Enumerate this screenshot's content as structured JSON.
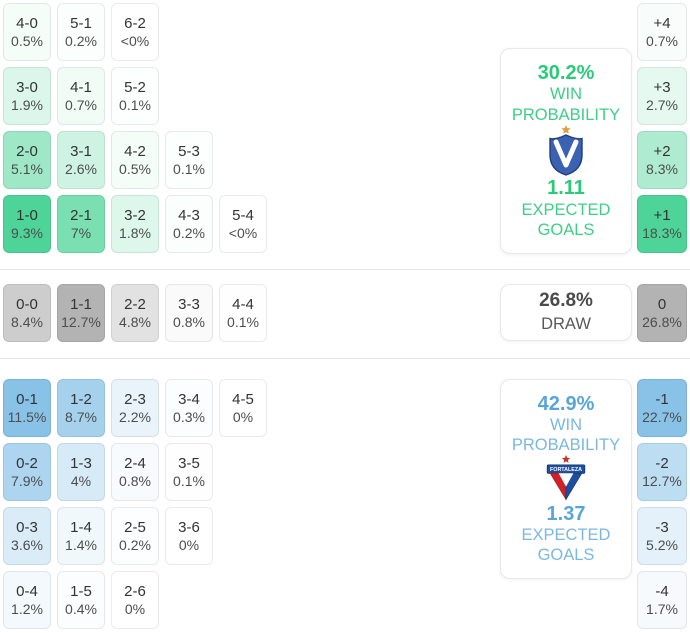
{
  "home_summary": {
    "team": "Velez Sarsfield",
    "win_probability": "30.2%",
    "win_label_line1": "WIN",
    "win_label_line2": "PROBABILITY",
    "expected_goals": "1.11",
    "goals_label_line1": "EXPECTED",
    "goals_label_line2": "GOALS"
  },
  "draw_summary": {
    "probability": "26.8%",
    "label": "DRAW"
  },
  "away_summary": {
    "team": "Fortaleza",
    "team_banner_text": "FORTALEZA",
    "win_probability": "42.9%",
    "win_label_line1": "WIN",
    "win_label_line2": "PROBABILITY",
    "expected_goals": "1.37",
    "goals_label_line1": "EXPECTED",
    "goals_label_line2": "GOALS"
  },
  "theme": {
    "home_color": "#4ed498",
    "draw_color": "#b3b3b3",
    "away_color": "#88c2e7",
    "home_text": "#2bc97a",
    "away_text": "#5aa5d7"
  },
  "chart_data": {
    "type": "heatmap",
    "description": "Correct-score probability matrix with goal-margin distribution; cell shading is proportional to probability within each section",
    "sections": [
      {
        "name": "home-win",
        "color_base": "#4ed498",
        "rows": [
          [
            {
              "score": "4-0",
              "pct": "0.5%",
              "value": 0.5
            },
            {
              "score": "5-1",
              "pct": "0.2%",
              "value": 0.2
            },
            {
              "score": "6-2",
              "pct": "<0%",
              "value": 0
            }
          ],
          [
            {
              "score": "3-0",
              "pct": "1.9%",
              "value": 1.9
            },
            {
              "score": "4-1",
              "pct": "0.7%",
              "value": 0.7
            },
            {
              "score": "5-2",
              "pct": "0.1%",
              "value": 0.1
            }
          ],
          [
            {
              "score": "2-0",
              "pct": "5.1%",
              "value": 5.1
            },
            {
              "score": "3-1",
              "pct": "2.6%",
              "value": 2.6
            },
            {
              "score": "4-2",
              "pct": "0.5%",
              "value": 0.5
            },
            {
              "score": "5-3",
              "pct": "0.1%",
              "value": 0.1
            }
          ],
          [
            {
              "score": "1-0",
              "pct": "9.3%",
              "value": 9.3
            },
            {
              "score": "2-1",
              "pct": "7%",
              "value": 7
            },
            {
              "score": "3-2",
              "pct": "1.8%",
              "value": 1.8
            },
            {
              "score": "4-3",
              "pct": "0.2%",
              "value": 0.2
            },
            {
              "score": "5-4",
              "pct": "<0%",
              "value": 0
            }
          ]
        ]
      },
      {
        "name": "draw",
        "color_base": "#b3b3b3",
        "rows": [
          [
            {
              "score": "0-0",
              "pct": "8.4%",
              "value": 8.4
            },
            {
              "score": "1-1",
              "pct": "12.7%",
              "value": 12.7
            },
            {
              "score": "2-2",
              "pct": "4.8%",
              "value": 4.8
            },
            {
              "score": "3-3",
              "pct": "0.8%",
              "value": 0.8
            },
            {
              "score": "4-4",
              "pct": "0.1%",
              "value": 0.1
            }
          ]
        ]
      },
      {
        "name": "away-win",
        "color_base": "#88c2e7",
        "rows": [
          [
            {
              "score": "0-1",
              "pct": "11.5%",
              "value": 11.5
            },
            {
              "score": "1-2",
              "pct": "8.7%",
              "value": 8.7
            },
            {
              "score": "2-3",
              "pct": "2.2%",
              "value": 2.2
            },
            {
              "score": "3-4",
              "pct": "0.3%",
              "value": 0.3
            },
            {
              "score": "4-5",
              "pct": "0%",
              "value": 0
            }
          ],
          [
            {
              "score": "0-2",
              "pct": "7.9%",
              "value": 7.9
            },
            {
              "score": "1-3",
              "pct": "4%",
              "value": 4
            },
            {
              "score": "2-4",
              "pct": "0.8%",
              "value": 0.8
            },
            {
              "score": "3-5",
              "pct": "0.1%",
              "value": 0.1
            }
          ],
          [
            {
              "score": "0-3",
              "pct": "3.6%",
              "value": 3.6
            },
            {
              "score": "1-4",
              "pct": "1.4%",
              "value": 1.4
            },
            {
              "score": "2-5",
              "pct": "0.2%",
              "value": 0.2
            },
            {
              "score": "3-6",
              "pct": "0%",
              "value": 0
            }
          ],
          [
            {
              "score": "0-4",
              "pct": "1.2%",
              "value": 1.2
            },
            {
              "score": "1-5",
              "pct": "0.4%",
              "value": 0.4
            },
            {
              "score": "2-6",
              "pct": "0%",
              "value": 0
            }
          ]
        ]
      }
    ],
    "margins": [
      {
        "group": "home-margin",
        "color_base": "#4ed498",
        "items": [
          {
            "label": "+4",
            "pct": "0.7%",
            "value": 0.7
          },
          {
            "label": "+3",
            "pct": "2.7%",
            "value": 2.7
          },
          {
            "label": "+2",
            "pct": "8.3%",
            "value": 8.3
          },
          {
            "label": "+1",
            "pct": "18.3%",
            "value": 18.3
          }
        ]
      },
      {
        "group": "draw-margin",
        "color_base": "#b3b3b3",
        "items": [
          {
            "label": "0",
            "pct": "26.8%",
            "value": 26.8
          }
        ]
      },
      {
        "group": "away-margin",
        "color_base": "#88c2e7",
        "items": [
          {
            "label": "-1",
            "pct": "22.7%",
            "value": 22.7
          },
          {
            "label": "-2",
            "pct": "12.7%",
            "value": 12.7
          },
          {
            "label": "-3",
            "pct": "5.2%",
            "value": 5.2
          },
          {
            "label": "-4",
            "pct": "1.7%",
            "value": 1.7
          }
        ]
      }
    ]
  }
}
